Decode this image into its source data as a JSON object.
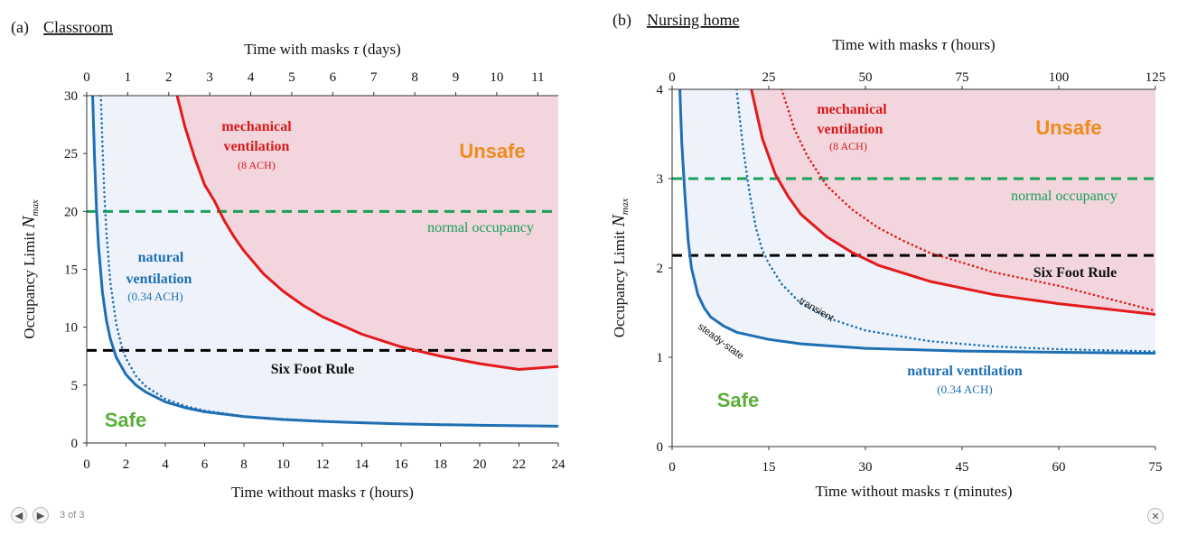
{
  "chart_data": [
    {
      "panel_label": "(a)",
      "title": "Classroom",
      "type": "line",
      "xlabel_bottom": "Time without masks",
      "xlabel_bottom_unit": "(hours)",
      "xlabel_top": "Time with masks",
      "xlabel_top_unit": "(days)",
      "tau": "τ",
      "ylabel": "Occupancy Limit",
      "ylabel_symbol": "N",
      "ylabel_sub": "max",
      "xlim": [
        0,
        24
      ],
      "ylim": [
        0,
        30
      ],
      "xlim_top": [
        0,
        11.5
      ],
      "xticks_bottom": [
        "0",
        "2",
        "4",
        "6",
        "8",
        "10",
        "12",
        "14",
        "16",
        "18",
        "20",
        "22",
        "24"
      ],
      "xticks_top": [
        "0",
        "1",
        "2",
        "3",
        "4",
        "5",
        "6",
        "7",
        "8",
        "9",
        "10",
        "11"
      ],
      "yticks": [
        "0",
        "5",
        "10",
        "15",
        "20",
        "25",
        "30"
      ],
      "series": [
        {
          "name": "natural ventilation (0.34 ACH)",
          "style": "solid",
          "color": "#1f6fb4",
          "x": [
            0.3,
            0.4,
            0.5,
            0.6,
            0.8,
            1,
            1.2,
            1.5,
            2,
            2.5,
            3,
            4,
            5,
            6,
            8,
            10,
            12,
            14,
            16,
            18,
            20,
            22,
            24
          ],
          "y": [
            30,
            24.5,
            20.1,
            17,
            13,
            10.6,
            9,
            7.4,
            5.9,
            5,
            4.4,
            3.55,
            3.05,
            2.7,
            2.28,
            2.03,
            1.86,
            1.74,
            1.65,
            1.58,
            1.53,
            1.49,
            1.45
          ]
        },
        {
          "name": "natural ventilation transient",
          "style": "dotted",
          "color": "#1f6fb4",
          "x": [
            0.72,
            0.8,
            0.9,
            1,
            1.2,
            1.5,
            1.8,
            2,
            2.5,
            3,
            4,
            5,
            6,
            8,
            10,
            12,
            14,
            16,
            18,
            20,
            22,
            24
          ],
          "y": [
            30,
            25.8,
            21.4,
            18.2,
            13.9,
            10.3,
            8.2,
            7.3,
            5.8,
            4.9,
            3.8,
            3.2,
            2.8,
            2.3,
            2.07,
            1.9,
            1.77,
            1.67,
            1.6,
            1.55,
            1.5,
            1.46
          ]
        },
        {
          "name": "mechanical ventilation (8 ACH)",
          "style": "solid",
          "color": "#e21b1b",
          "x": [
            4.6,
            5,
            5.5,
            6,
            6.5,
            7,
            7.5,
            8,
            9,
            10,
            11,
            12,
            14,
            16,
            18,
            20,
            22,
            24
          ],
          "y": [
            30,
            27.3,
            24.6,
            22.3,
            20.9,
            19.2,
            17.8,
            16.6,
            14.6,
            13.1,
            11.9,
            10.9,
            9.4,
            8.3,
            7.5,
            6.85,
            6.35,
            6.6
          ]
        }
      ],
      "reference_lines": [
        {
          "name": "normal occupancy",
          "y": 20,
          "color": "#1aa05a"
        },
        {
          "name": "Six Foot Rule",
          "y": 8,
          "color": "#000000"
        }
      ],
      "annotations": {
        "unsafe": "Unsafe",
        "safe": "Safe",
        "mech_1": "mechanical",
        "mech_2": "ventilation",
        "mech_3": "(8 ACH)",
        "nat_1": "natural",
        "nat_2": "ventilation",
        "nat_3": "(0.34 ACH)"
      },
      "colors": {
        "unsafe_fill": "#f2d5dd",
        "safe_fill": "#eef3fb",
        "unsafe_text": "#f08a1c",
        "safe_text": "#5aae3b"
      }
    },
    {
      "panel_label": "(b)",
      "title": "Nursing home",
      "type": "line",
      "xlabel_bottom": "Time without masks",
      "xlabel_bottom_unit": "(minutes)",
      "xlabel_top": "Time with masks",
      "xlabel_top_unit": "(hours)",
      "tau": "τ",
      "ylabel": "Occupancy Limit",
      "ylabel_symbol": "N",
      "ylabel_sub": "max",
      "xlim": [
        0,
        75
      ],
      "ylim": [
        0,
        4
      ],
      "xlim_top": [
        0,
        125
      ],
      "xticks_bottom": [
        "0",
        "15",
        "30",
        "45",
        "60",
        "75"
      ],
      "xticks_top": [
        "0",
        "25",
        "50",
        "75",
        "100",
        "125"
      ],
      "yticks": [
        "0",
        "1",
        "2",
        "3",
        "4"
      ],
      "series": [
        {
          "name": "natural ventilation (0.34 ACH) steady-state",
          "style": "solid",
          "color": "#1f6fb4",
          "x": [
            1.2,
            1.5,
            2,
            2.5,
            3,
            4,
            5,
            6,
            8,
            10,
            15,
            20,
            30,
            45,
            60,
            75
          ],
          "y": [
            4,
            3.4,
            2.8,
            2.3,
            2.0,
            1.7,
            1.55,
            1.45,
            1.35,
            1.28,
            1.2,
            1.15,
            1.1,
            1.07,
            1.055,
            1.045
          ]
        },
        {
          "name": "natural ventilation transient",
          "style": "dotted",
          "color": "#1f6fb4",
          "x": [
            10,
            11,
            12,
            13,
            14,
            15,
            17,
            20,
            25,
            30,
            40,
            50,
            60,
            75
          ],
          "y": [
            4,
            3.35,
            2.85,
            2.45,
            2.2,
            2.05,
            1.82,
            1.6,
            1.42,
            1.3,
            1.18,
            1.12,
            1.09,
            1.065
          ]
        },
        {
          "name": "mechanical ventilation (8 ACH)",
          "style": "solid",
          "color": "#e21b1b",
          "x": [
            12.3,
            14,
            16,
            18,
            20,
            24,
            28,
            32,
            40,
            50,
            60,
            75
          ],
          "y": [
            4,
            3.45,
            3.05,
            2.8,
            2.6,
            2.35,
            2.17,
            2.03,
            1.85,
            1.7,
            1.6,
            1.48
          ]
        },
        {
          "name": "mechanical ventilation transient",
          "style": "dotted",
          "color": "#e21b1b",
          "x": [
            17,
            19,
            21,
            24,
            28,
            32,
            36,
            40,
            50,
            60,
            75
          ],
          "y": [
            4,
            3.55,
            3.25,
            2.92,
            2.65,
            2.45,
            2.3,
            2.17,
            1.95,
            1.8,
            1.52
          ]
        }
      ],
      "reference_lines": [
        {
          "name": "normal occupancy",
          "y": 3,
          "color": "#1aa05a"
        },
        {
          "name": "Six Foot Rule",
          "y": 2.14,
          "color": "#000000"
        }
      ],
      "annotations": {
        "unsafe": "Unsafe",
        "safe": "Safe",
        "mech_1": "mechanical",
        "mech_2": "ventilation",
        "mech_3": "(8 ACH)",
        "nat_1": "natural ventilation",
        "nat_3": "(0.34 ACH)",
        "steady": "steady-state",
        "transient": "transient"
      },
      "colors": {
        "unsafe_fill": "#f2d5dd",
        "safe_fill": "#eef3fb",
        "unsafe_text": "#f08a1c",
        "safe_text": "#5aae3b"
      }
    }
  ],
  "viewer": {
    "prev_icon": "◀",
    "next_icon": "▶",
    "counter": "3 of 3",
    "close_icon": "✕"
  }
}
